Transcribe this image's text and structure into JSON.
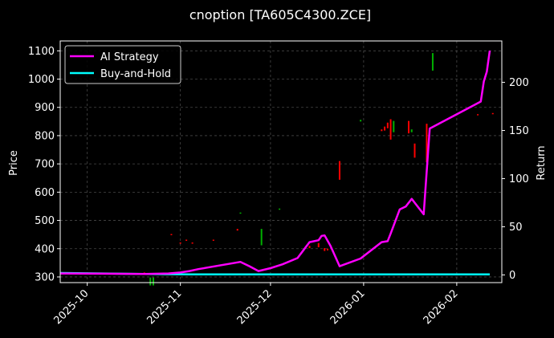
{
  "chart_data": {
    "type": "line",
    "title": "cnoption [TA605C4300.ZCE]",
    "xlabel": "",
    "ylabel_left": "Price",
    "ylabel_right": "Return",
    "x_tick_labels": [
      "2025-10",
      "2025-11",
      "2025-12",
      "2026-01",
      "2026-02"
    ],
    "y_left_ticks": [
      "300",
      "400",
      "500",
      "600",
      "700",
      "800",
      "900",
      "1000",
      "1100"
    ],
    "y_right_ticks": [
      "0",
      "50",
      "100",
      "150",
      "200"
    ],
    "x_range": [
      "2025-09-22",
      "2026-02-16"
    ],
    "y_left_range": [
      280,
      1135
    ],
    "y_right_range": [
      -8,
      243
    ],
    "grid": true,
    "legend_position": "top-left",
    "series": [
      {
        "name": "AI Strategy",
        "color": "#ff00ff",
        "axis": "right",
        "points": [
          [
            "2025-09-22",
            1.5
          ],
          [
            "2025-10-20",
            1.0
          ],
          [
            "2025-10-28",
            1.5
          ],
          [
            "2025-11-01",
            2.5
          ],
          [
            "2025-11-04",
            4.0
          ],
          [
            "2025-11-07",
            6.0
          ],
          [
            "2025-11-21",
            13.5
          ],
          [
            "2025-11-24",
            9.0
          ],
          [
            "2025-11-27",
            4.0
          ],
          [
            "2025-12-01",
            7.0
          ],
          [
            "2025-12-05",
            11.0
          ],
          [
            "2025-12-10",
            17.5
          ],
          [
            "2025-12-14",
            34.0
          ],
          [
            "2025-12-17",
            36.0
          ],
          [
            "2025-12-18",
            40.5
          ],
          [
            "2025-12-19",
            41.0
          ],
          [
            "2025-12-21",
            30.0
          ],
          [
            "2025-12-24",
            9.0
          ],
          [
            "2025-12-31",
            17.0
          ],
          [
            "2026-01-07",
            34.0
          ],
          [
            "2026-01-09",
            35.0
          ],
          [
            "2026-01-10",
            43.0
          ],
          [
            "2026-01-13",
            68.0
          ],
          [
            "2026-01-15",
            71.0
          ],
          [
            "2026-01-17",
            79.0
          ],
          [
            "2026-01-18",
            75.0
          ],
          [
            "2026-01-21",
            63.0
          ],
          [
            "2026-01-23",
            152.0
          ],
          [
            "2026-02-09",
            180.0
          ],
          [
            "2026-02-10",
            201.0
          ],
          [
            "2026-02-11",
            211.0
          ],
          [
            "2026-02-12",
            233.0
          ]
        ]
      },
      {
        "name": "Buy-and-Hold",
        "color": "#00ffff",
        "axis": "right",
        "points": [
          [
            "2025-09-22",
            2.0
          ],
          [
            "2025-10-20",
            1.0
          ],
          [
            "2025-11-04",
            0.5
          ],
          [
            "2025-12-01",
            0.5
          ],
          [
            "2026-01-01",
            0.5
          ],
          [
            "2026-02-12",
            0.5
          ]
        ]
      }
    ],
    "candles": {
      "axis": "left",
      "up_color": "#00b000",
      "down_color": "#ff0000",
      "points": [
        [
          "2025-10-20",
          316,
          308,
          "down"
        ],
        [
          "2025-10-22",
          298,
          270,
          "up"
        ],
        [
          "2025-10-23",
          298,
          270,
          "up"
        ],
        [
          "2025-10-29",
          452,
          448,
          "down"
        ],
        [
          "2025-11-01",
          422,
          418,
          "down"
        ],
        [
          "2025-11-03",
          432,
          428,
          "down"
        ],
        [
          "2025-11-05",
          422,
          418,
          "down"
        ],
        [
          "2025-11-12",
          432,
          428,
          "down"
        ],
        [
          "2025-11-20",
          470,
          464,
          "down"
        ],
        [
          "2025-11-21",
          528,
          524,
          "up"
        ],
        [
          "2025-11-28",
          470,
          412,
          "up"
        ],
        [
          "2025-12-04",
          542,
          538,
          "up"
        ],
        [
          "2025-12-14",
          410,
          402,
          "down"
        ],
        [
          "2025-12-17",
          420,
          405,
          "down"
        ],
        [
          "2025-12-19",
          402,
          392,
          "down"
        ],
        [
          "2025-12-20",
          400,
          394,
          "down"
        ],
        [
          "2025-12-24",
          710,
          644,
          "down"
        ],
        [
          "2025-12-31",
          856,
          850,
          "up"
        ],
        [
          "2026-01-07",
          822,
          816,
          "down"
        ],
        [
          "2026-01-08",
          832,
          818,
          "down"
        ],
        [
          "2026-01-09",
          846,
          826,
          "down"
        ],
        [
          "2026-01-10",
          858,
          786,
          "down"
        ],
        [
          "2026-01-11",
          852,
          812,
          "up"
        ],
        [
          "2026-01-16",
          852,
          808,
          "down"
        ],
        [
          "2026-01-17",
          822,
          812,
          "up"
        ],
        [
          "2026-01-18",
          772,
          722,
          "down"
        ],
        [
          "2026-01-22",
          842,
          706,
          "down"
        ],
        [
          "2026-01-24",
          1092,
          1030,
          "up"
        ],
        [
          "2026-02-08",
          876,
          872,
          "down"
        ],
        [
          "2026-02-13",
          880,
          876,
          "down"
        ]
      ]
    }
  }
}
